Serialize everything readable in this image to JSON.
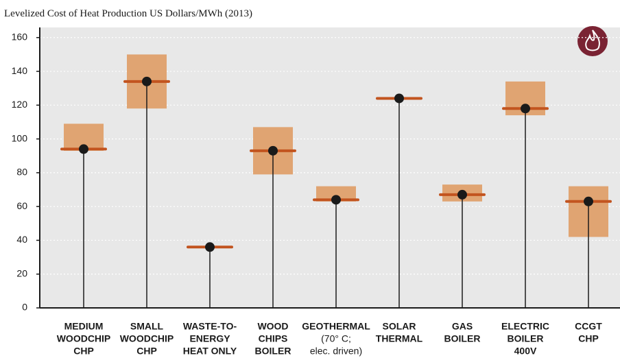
{
  "chart_data": {
    "type": "range",
    "title": "Levelized Cost of Heat Production US Dollars/MWh (2013)",
    "categories": [
      [
        "MEDIUM",
        "WOODCHIP",
        "CHP"
      ],
      [
        "SMALL",
        "WOODCHIP",
        "CHP"
      ],
      [
        "WASTE-TO-",
        "ENERGY",
        "HEAT ONLY"
      ],
      [
        "WOOD",
        "CHIPS",
        "BOILER"
      ],
      [
        "GEOTHERMAL",
        "(70° C;",
        "elec. driven)"
      ],
      [
        "SOLAR",
        "THERMAL"
      ],
      [
        "GAS",
        "BOILER"
      ],
      [
        "ELECTRIC",
        "BOILER",
        "400V"
      ],
      [
        "CCGT",
        "CHP"
      ]
    ],
    "values": [
      94,
      134,
      36,
      93,
      64,
      124,
      67,
      118,
      63
    ],
    "low": [
      93,
      118,
      null,
      79,
      63,
      null,
      63,
      114,
      42
    ],
    "high": [
      109,
      150,
      null,
      107,
      72,
      null,
      73,
      134,
      72
    ],
    "box_color": "#e0a472",
    "median_color": "#c2541f",
    "dot_color": "#1a1a1a",
    "ylim": [
      0,
      166
    ],
    "yticks": [
      0,
      20,
      40,
      60,
      80,
      100,
      120,
      140,
      160
    ],
    "grid": true
  }
}
